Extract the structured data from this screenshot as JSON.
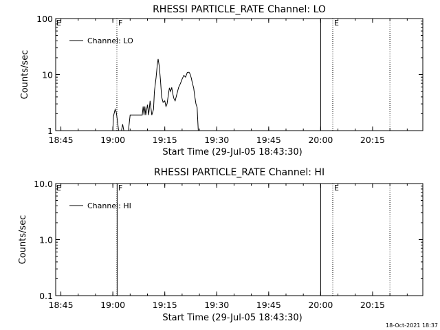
{
  "chart_data": [
    {
      "type": "line",
      "title": "RHESSI PARTICLE_RATE Channel: LO",
      "xlabel": "Start Time (29-Jul-05 18:43:30)",
      "ylabel": "Counts/sec",
      "y_scale": "log",
      "ylim": [
        1,
        100
      ],
      "y_ticks": [
        "1",
        "10",
        "100"
      ],
      "xlim": [
        "18:43:30",
        "20:29:30"
      ],
      "x_ticks": [
        "18:45",
        "19:00",
        "19:15",
        "19:30",
        "19:45",
        "20:00",
        "20:15"
      ],
      "legend": {
        "position": "top-left",
        "entries": [
          "Channel: LO"
        ]
      },
      "markers": [
        {
          "time": "19:01:10",
          "style": "dotted",
          "label": "F"
        },
        {
          "time": "20:00:00",
          "style": "solid",
          "label": ""
        },
        {
          "time": "20:03:30",
          "style": "dotted",
          "label": "E"
        },
        {
          "time": "20:20:00",
          "style": "dotted",
          "label": ""
        }
      ],
      "corner_labels": [
        "E"
      ],
      "series": [
        {
          "name": "Channel: LO",
          "segments": [
            [
              [
                "19:00:00",
                1
              ],
              [
                "19:00:10",
                1.8
              ],
              [
                "19:00:40",
                2.4
              ],
              [
                "19:01:00",
                2.1
              ],
              [
                "19:01:20",
                1.5
              ],
              [
                "19:01:40",
                1
              ]
            ],
            [
              [
                "19:02:30",
                1
              ],
              [
                "19:02:50",
                1.3
              ],
              [
                "19:03:10",
                1
              ]
            ],
            [
              [
                "19:04:30",
                1
              ],
              [
                "19:05:00",
                1.9
              ],
              [
                "19:06:30",
                1.9
              ],
              [
                "19:08:30",
                1.9
              ],
              [
                "19:08:45",
                2.7
              ],
              [
                "19:09:00",
                1.9
              ],
              [
                "19:09:15",
                2.7
              ],
              [
                "19:09:30",
                1.9
              ],
              [
                "19:10:00",
                2.9
              ],
              [
                "19:10:20",
                1.9
              ],
              [
                "19:10:45",
                3.4
              ],
              [
                "19:11:15",
                1.9
              ],
              [
                "19:11:45",
                2.4
              ],
              [
                "19:12:00",
                5
              ],
              [
                "19:12:30",
                9
              ],
              [
                "19:12:50",
                15
              ],
              [
                "19:13:05",
                19
              ],
              [
                "19:13:25",
                14
              ],
              [
                "19:13:45",
                8
              ],
              [
                "19:14:05",
                4
              ],
              [
                "19:14:30",
                3.2
              ],
              [
                "19:15:00",
                3.4
              ],
              [
                "19:15:20",
                2.7
              ],
              [
                "19:15:40",
                3
              ],
              [
                "19:16:00",
                4.2
              ],
              [
                "19:16:20",
                5.8
              ],
              [
                "19:16:40",
                5
              ],
              [
                "19:17:00",
                5.9
              ],
              [
                "19:17:20",
                4.5
              ],
              [
                "19:17:40",
                3.7
              ],
              [
                "19:18:00",
                3.4
              ],
              [
                "19:18:30",
                4.5
              ],
              [
                "19:19:00",
                5.9
              ],
              [
                "19:19:30",
                6.9
              ],
              [
                "19:20:00",
                8.3
              ],
              [
                "19:20:30",
                9.7
              ],
              [
                "19:21:00",
                9
              ],
              [
                "19:21:30",
                10.9
              ],
              [
                "19:22:00",
                11
              ],
              [
                "19:22:20",
                10.2
              ],
              [
                "19:22:40",
                8.6
              ],
              [
                "19:23:00",
                6.9
              ],
              [
                "19:23:20",
                5.8
              ],
              [
                "19:23:40",
                4.1
              ],
              [
                "19:24:00",
                3
              ],
              [
                "19:24:20",
                2.6
              ],
              [
                "19:24:40",
                1
              ]
            ]
          ]
        }
      ]
    },
    {
      "type": "line",
      "title": "RHESSI PARTICLE_RATE Channel: HI",
      "xlabel": "Start Time (29-Jul-05 18:43:30)",
      "ylabel": "Counts/sec",
      "y_scale": "log",
      "ylim": [
        0.1,
        10
      ],
      "y_ticks": [
        "0.1",
        "1.0",
        "10.0"
      ],
      "xlim": [
        "18:43:30",
        "20:29:30"
      ],
      "x_ticks": [
        "18:45",
        "19:00",
        "19:15",
        "19:30",
        "19:45",
        "20:00",
        "20:15"
      ],
      "legend": {
        "position": "top-left",
        "entries": [
          "Channel: HI"
        ]
      },
      "markers": [
        {
          "time": "19:01:10",
          "style": "dotted",
          "label": "F"
        },
        {
          "time": "20:00:00",
          "style": "solid",
          "label": ""
        },
        {
          "time": "20:03:30",
          "style": "dotted",
          "label": "E"
        },
        {
          "time": "20:20:00",
          "style": "dotted",
          "label": ""
        }
      ],
      "corner_labels": [
        "E"
      ],
      "series": [
        {
          "name": "Channel: HI",
          "segments": [
            [
              [
                "19:01:15",
                0.1
              ],
              [
                "19:01:15",
                10
              ]
            ]
          ]
        }
      ]
    }
  ],
  "footer": {
    "timestamp": "18-Oct-2021 18:37"
  }
}
